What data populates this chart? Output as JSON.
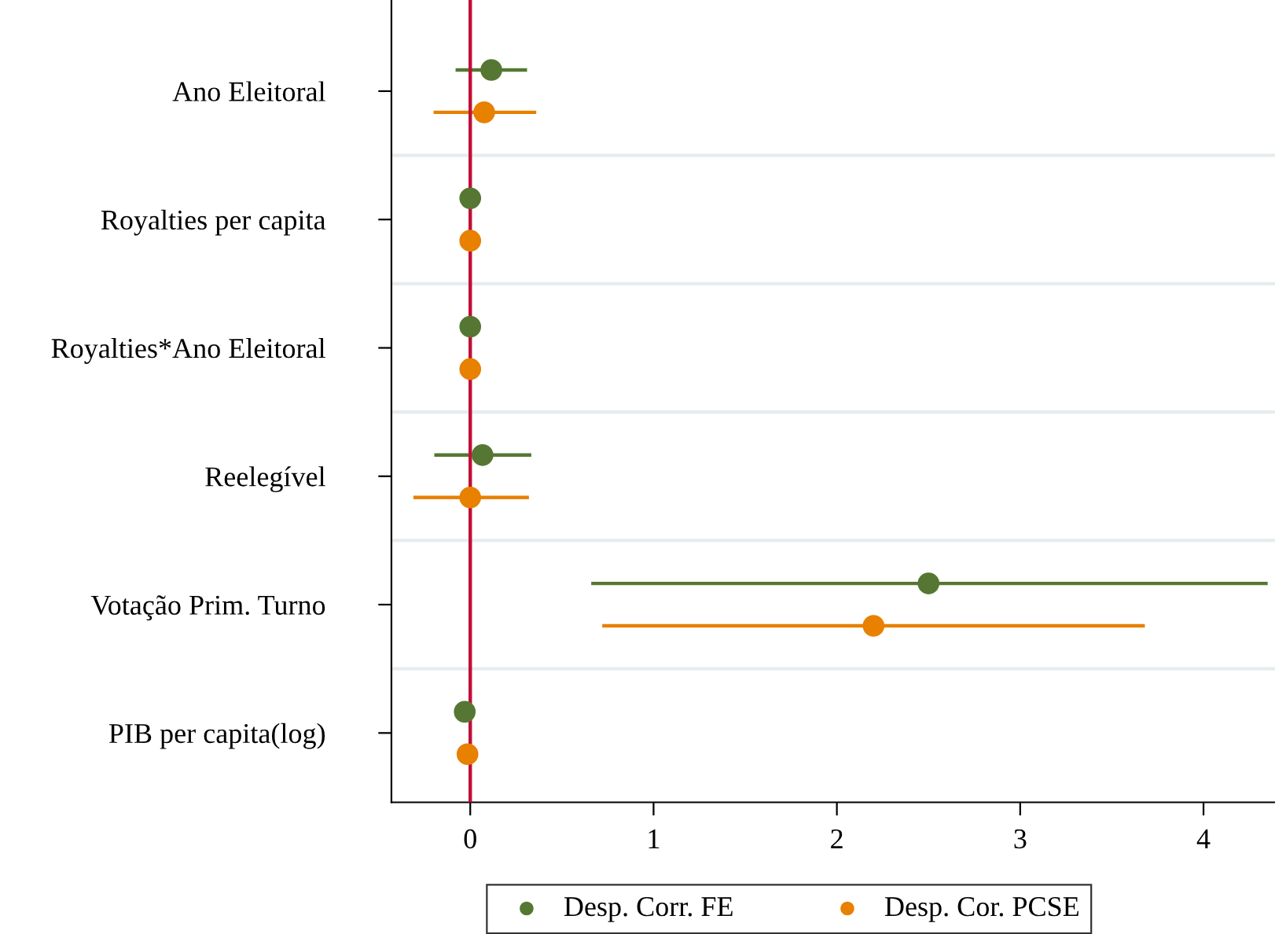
{
  "chart_data": {
    "type": "scatter",
    "orientation": "horizontal",
    "categories": [
      "Ano Eleitoral",
      "Royalties per capita",
      "Royalties*Ano Eleitoral",
      "Reelegível",
      "Votação Prim. Turno",
      "PIB per capita(log)"
    ],
    "series": [
      {
        "name": "Desp. Corr. FE",
        "color": "#557733",
        "values": [
          0.115,
          0,
          0,
          0.067,
          2.5,
          -0.03
        ],
        "errors": [
          [
            -0.08,
            0.31
          ],
          null,
          null,
          [
            -0.196,
            0.333
          ],
          [
            0.66,
            4.35
          ],
          null
        ]
      },
      {
        "name": "Desp. Cor. PCSE",
        "color": "#e88000",
        "values": [
          0.076,
          0,
          0,
          0,
          2.2,
          -0.015
        ],
        "errors": [
          [
            -0.2,
            0.36
          ],
          null,
          null,
          [
            -0.31,
            0.32
          ],
          [
            0.72,
            3.68
          ],
          null
        ]
      }
    ],
    "xlim": [
      -0.43,
      4.39
    ],
    "xticks": [
      0,
      1,
      2,
      3,
      4
    ],
    "ref_lines": [
      {
        "axis": "x",
        "value": 0,
        "color": "#c0103a"
      }
    ],
    "grid": "y",
    "legend": "bottom",
    "marker": "circle"
  }
}
